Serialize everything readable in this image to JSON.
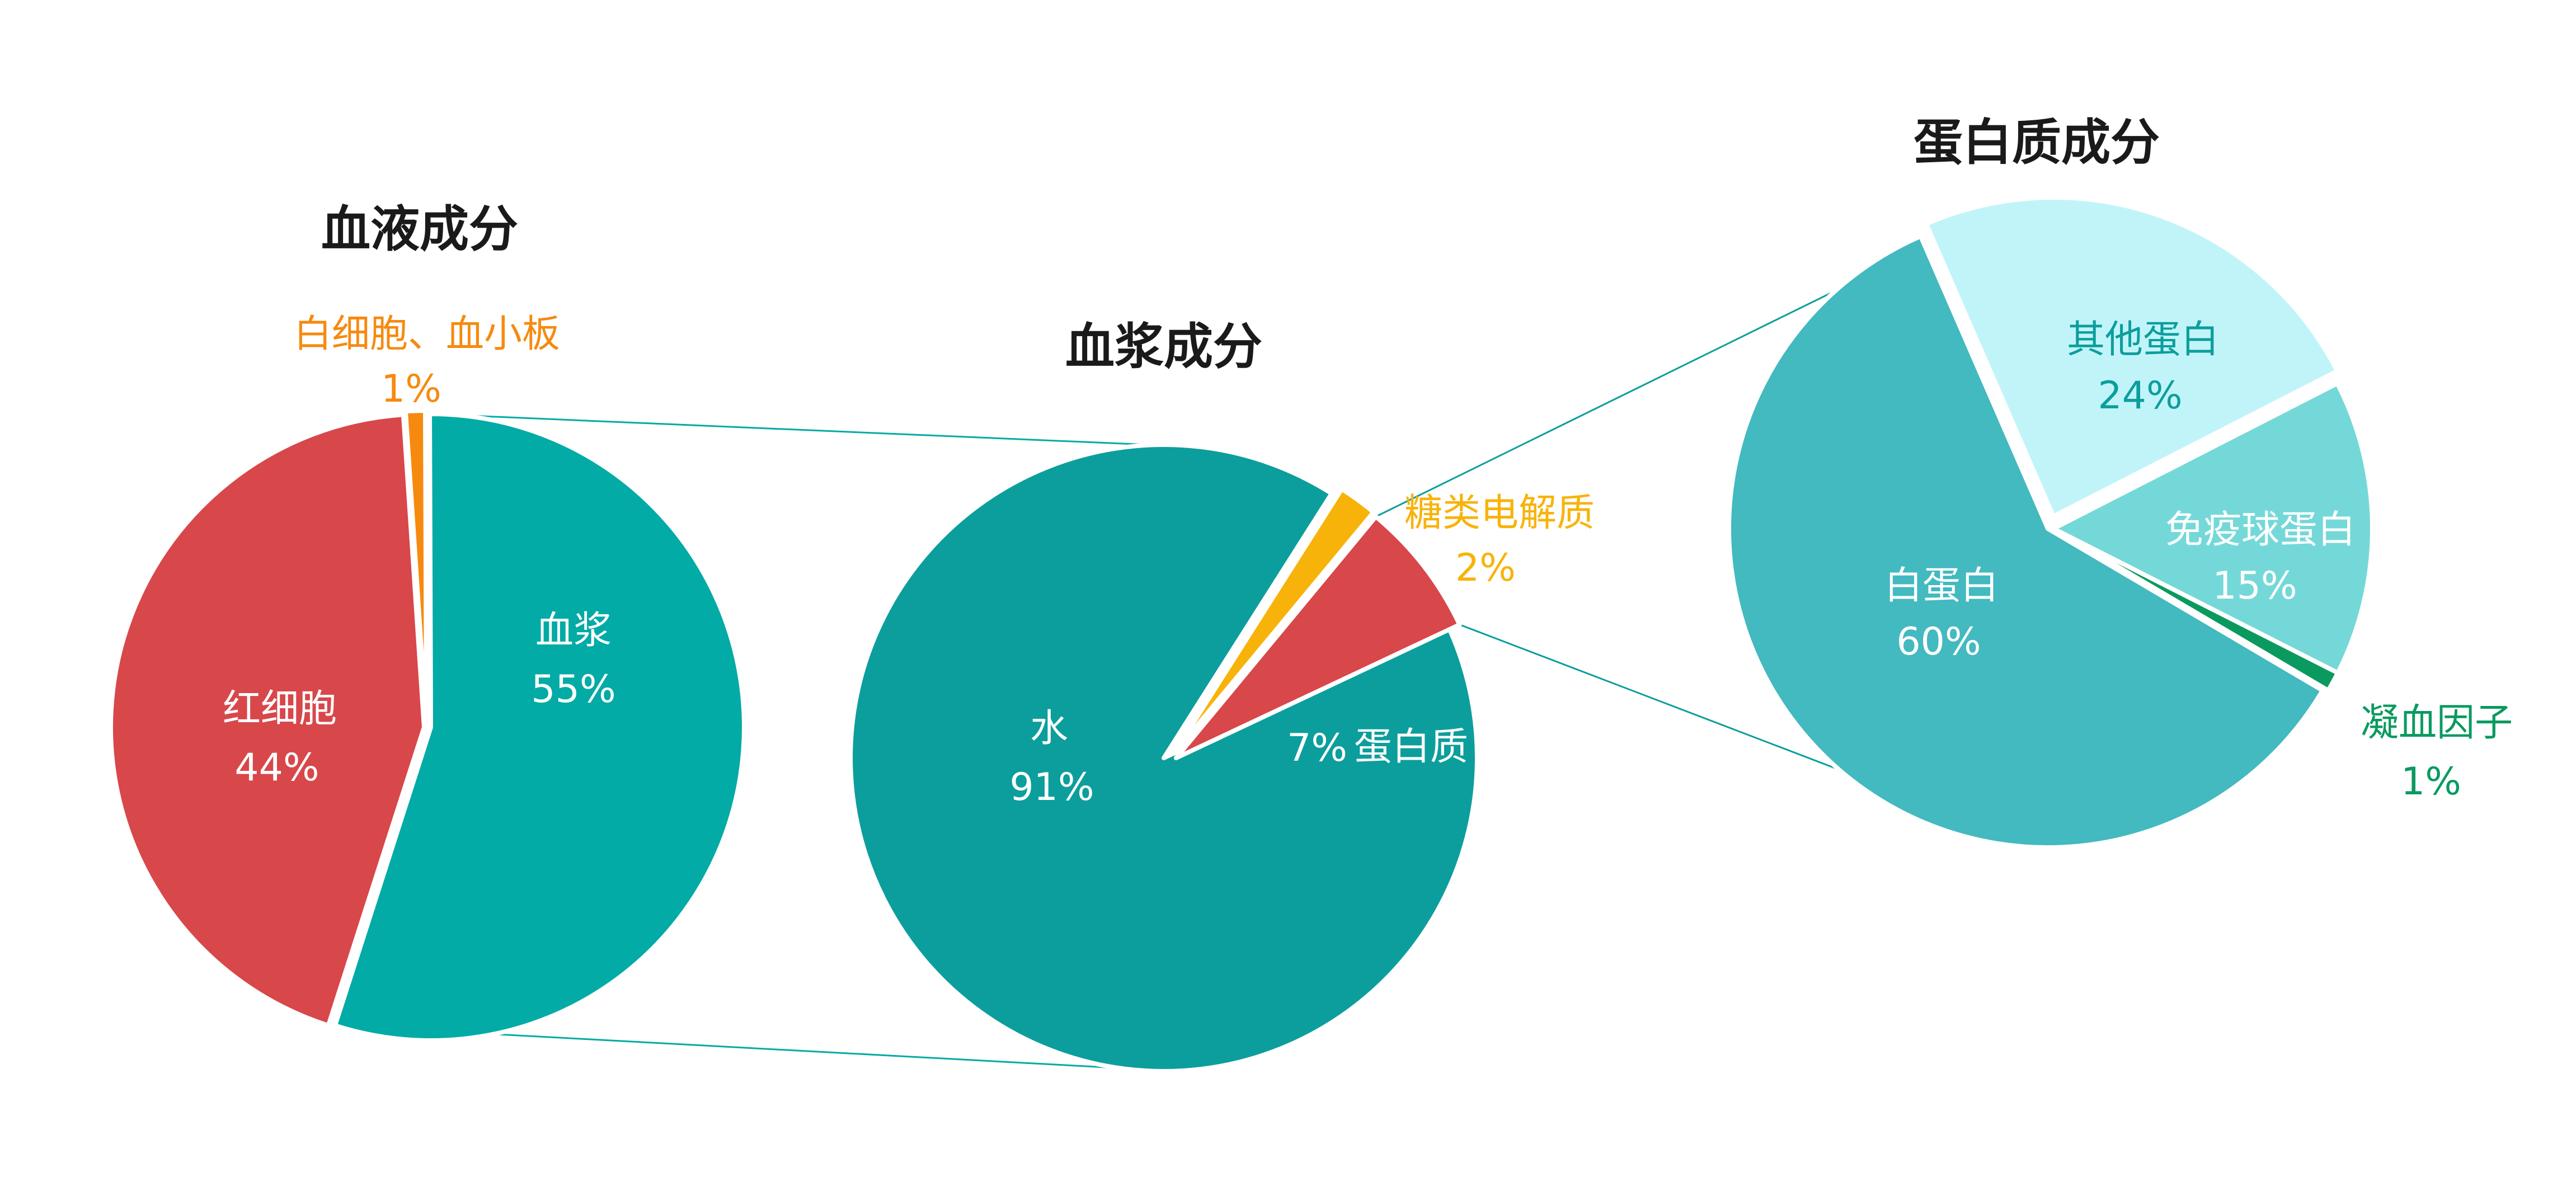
{
  "chart_data": [
    {
      "type": "pie",
      "title": "血液成分",
      "slices": [
        {
          "label": "血浆",
          "value": 55,
          "value_text": "55%",
          "color": "#02ABA5"
        },
        {
          "label": "红细胞",
          "value": 44,
          "value_text": "44%",
          "color": "#D8474A"
        },
        {
          "label": "白细胞、血小板",
          "value": 1,
          "value_text": "1%",
          "color": "#F68A0F"
        }
      ]
    },
    {
      "type": "pie",
      "title": "血浆成分",
      "slices": [
        {
          "label": "水",
          "value": 91,
          "value_text": "91%",
          "color": "#0C9E9C"
        },
        {
          "label": "糖类电解质",
          "value": 2,
          "value_text": "2%",
          "color": "#F8B30A"
        },
        {
          "label": "蛋白质",
          "value": 7,
          "value_text": "7%",
          "color": "#D8474A"
        }
      ]
    },
    {
      "type": "pie",
      "title": "蛋白质成分",
      "slices": [
        {
          "label": "其他蛋白",
          "value": 24,
          "value_text": "24%",
          "color": "#C1F4F9"
        },
        {
          "label": "免疫球蛋白",
          "value": 15,
          "value_text": "15%",
          "color": "#75D8D8"
        },
        {
          "label": "凝血因子",
          "value": 1,
          "value_text": "1%",
          "color": "#0A9A60"
        },
        {
          "label": "白蛋白",
          "value": 60,
          "value_text": "60%",
          "color": "#43B9C0"
        }
      ]
    }
  ]
}
